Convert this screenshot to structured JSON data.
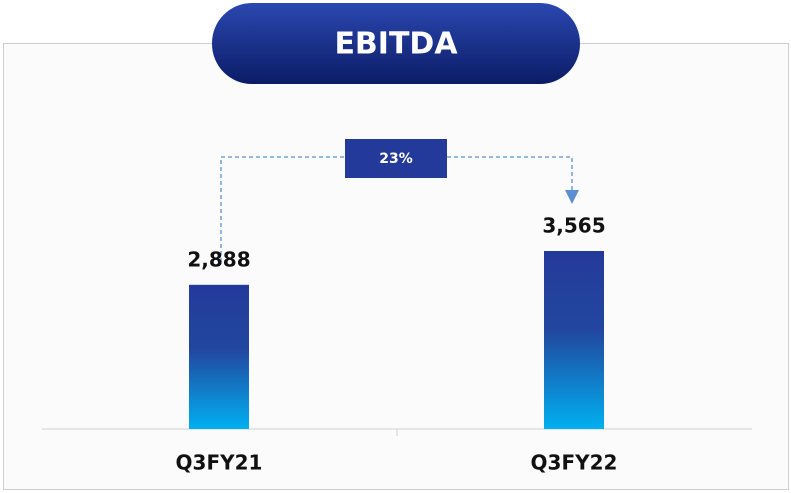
{
  "chart_data": {
    "type": "bar",
    "title": "EBITDA",
    "categories": [
      "Q3FY21",
      "Q3FY22"
    ],
    "values": [
      2888,
      3565
    ],
    "value_labels": [
      "2,888",
      "3,565"
    ],
    "annotation": "23%",
    "color": "#243a9b"
  }
}
